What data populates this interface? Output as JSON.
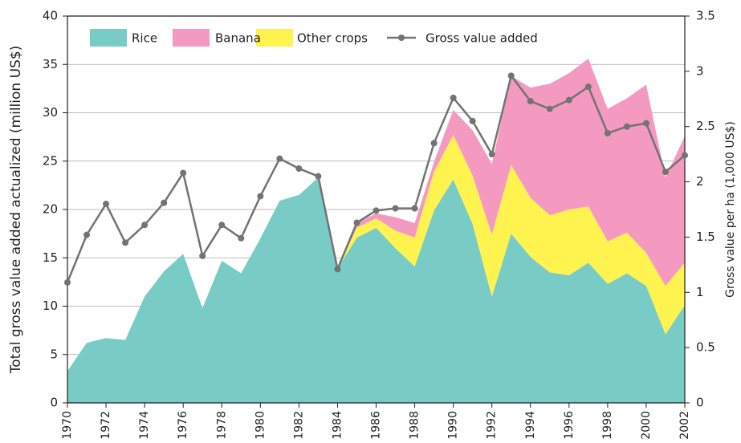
{
  "chart_data": {
    "type": "area",
    "stacked": true,
    "y_label": "Total gross value added actualized (million US$)",
    "y2_label": "Gross value per ha (1,000 US$)",
    "x": [
      1970,
      1971,
      1972,
      1973,
      1974,
      1975,
      1976,
      1977,
      1978,
      1979,
      1980,
      1981,
      1982,
      1983,
      1984,
      1985,
      1986,
      1987,
      1988,
      1989,
      1990,
      1991,
      1992,
      1993,
      1994,
      1995,
      1996,
      1997,
      1998,
      1999,
      2000,
      2001,
      2002
    ],
    "xlim": [
      1970,
      2002
    ],
    "xticks": [
      1970,
      1972,
      1974,
      1976,
      1978,
      1980,
      1982,
      1984,
      1986,
      1988,
      1990,
      1992,
      1994,
      1996,
      1998,
      2000,
      2002
    ],
    "ylim": [
      0,
      40
    ],
    "yticks": [
      0,
      5,
      10,
      15,
      20,
      25,
      30,
      35,
      40
    ],
    "y2lim": [
      0,
      3.5
    ],
    "y2ticks": [
      0,
      0.5,
      1,
      1.5,
      2,
      2.5,
      3,
      3.5
    ],
    "grid": true,
    "legend": "top-left",
    "series": [
      {
        "name": "Rice",
        "color": "#79ccc6",
        "values": [
          3.3,
          6.2,
          6.7,
          6.5,
          11.0,
          13.6,
          15.4,
          9.8,
          14.7,
          13.4,
          17.0,
          20.9,
          21.5,
          23.3,
          13.9,
          17.1,
          18.1,
          16.0,
          14.1,
          19.9,
          23.1,
          18.5,
          11.0,
          17.5,
          15.1,
          13.5,
          13.2,
          14.5,
          12.3,
          13.4,
          12.1,
          7.1,
          10.1
        ]
      },
      {
        "name": "Other crops",
        "color": "#fff34f",
        "values": [
          0,
          0,
          0,
          0,
          0,
          0,
          0,
          0,
          0,
          0,
          0,
          0,
          0,
          0,
          0,
          1.0,
          1.0,
          1.8,
          3.0,
          4.0,
          4.6,
          5.0,
          6.4,
          7.1,
          6.1,
          5.9,
          6.8,
          5.8,
          4.4,
          4.2,
          3.4,
          5.0,
          4.4
        ]
      },
      {
        "name": "Banana",
        "color": "#f49ac1",
        "values": [
          0,
          0,
          0,
          0,
          0,
          0,
          0,
          0,
          0,
          0,
          0,
          0,
          0,
          0,
          0,
          0.5,
          0.5,
          1.4,
          1.5,
          1.0,
          2.6,
          4.7,
          7.3,
          9.2,
          11.4,
          13.6,
          14.1,
          15.3,
          13.7,
          13.9,
          17.4,
          11.2,
          13.1
        ]
      },
      {
        "name": "Gross value added",
        "type": "line",
        "axis": "y2",
        "color": "#737373",
        "values": [
          1.09,
          1.52,
          1.8,
          1.45,
          1.61,
          1.81,
          2.08,
          1.33,
          1.61,
          1.49,
          1.87,
          2.21,
          2.12,
          2.05,
          1.21,
          1.63,
          1.74,
          1.76,
          1.76,
          2.35,
          2.76,
          2.55,
          2.25,
          2.96,
          2.73,
          2.66,
          2.74,
          2.86,
          2.44,
          2.5,
          2.53,
          2.09,
          2.24
        ]
      }
    ]
  }
}
